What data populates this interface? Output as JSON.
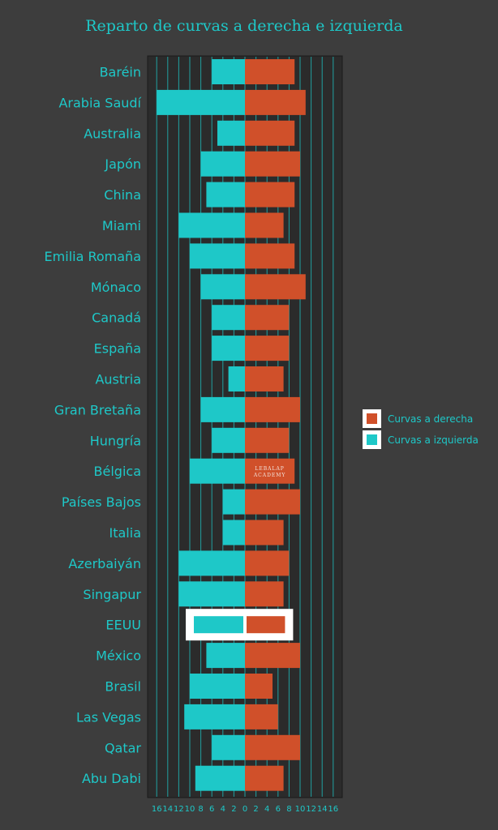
{
  "chart_data": {
    "type": "bar",
    "title": "Reparto de curvas a derecha e izquierda",
    "categories": [
      "Baréin",
      "Arabia Saudí",
      "Australia",
      "Japón",
      "China",
      "Miami",
      "Emilia Romaña",
      "Mónaco",
      "Canadá",
      "España",
      "Austria",
      "Gran Bretaña",
      "Hungría",
      "Bélgica",
      "Países Bajos",
      "Italia",
      "Azerbaiyán",
      "Singapur",
      "EEUU",
      "México",
      "Brasil",
      "Las Vegas",
      "Qatar",
      "Abu Dabi"
    ],
    "series": [
      {
        "name": "Curvas a derecha",
        "color": "#d0502a",
        "values": [
          9,
          11,
          9,
          10,
          9,
          7,
          9,
          11,
          8,
          8,
          7,
          10,
          8,
          9,
          10,
          7,
          8,
          7,
          8,
          10,
          5,
          6,
          10,
          7
        ]
      },
      {
        "name": "Curvas a izquierda",
        "color": "#1ec8c8",
        "values": [
          6,
          16,
          5,
          8,
          7,
          12,
          10,
          8,
          6,
          6,
          3,
          8,
          6,
          10,
          4,
          4,
          12,
          12,
          10,
          7,
          10,
          11,
          6,
          9
        ]
      }
    ],
    "xticks": [
      "16",
      "14",
      "12",
      "10",
      "8",
      "6",
      "4",
      "2",
      "0",
      "2",
      "4",
      "6",
      "8",
      "10",
      "12",
      "14",
      "16"
    ],
    "xlim": [
      -16,
      16
    ],
    "highlight": "EEUU",
    "watermark": [
      "LEBALAP",
      "ACADEMY"
    ],
    "legend_position": "right",
    "colors": {
      "background": "#3d3d3d",
      "text": "#1ec8c8",
      "right": "#d0502a",
      "left": "#1ec8c8",
      "grid": "#1ec8c8",
      "highlight": "#ffffff"
    }
  }
}
